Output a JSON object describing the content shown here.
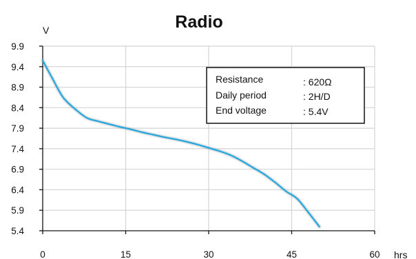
{
  "chart_data": {
    "type": "line",
    "title": "Radio",
    "ylabel": "V",
    "xlabel": "hrs",
    "xlim": [
      0,
      60
    ],
    "ylim": [
      5.4,
      9.9
    ],
    "x_ticks": [
      0,
      15,
      30,
      45,
      60
    ],
    "y_ticks": [
      5.4,
      5.9,
      6.4,
      6.9,
      7.4,
      7.9,
      8.4,
      8.9,
      9.4,
      9.9
    ],
    "grid": true,
    "series": [
      {
        "color": "#2aa7dd",
        "x": [
          0,
          1,
          2,
          3,
          4,
          6,
          8,
          10,
          12,
          14,
          16,
          18,
          20,
          22,
          24,
          26,
          28,
          30,
          32,
          34,
          36,
          38,
          40,
          42,
          44,
          46,
          48,
          50
        ],
        "y": [
          9.55,
          9.3,
          9.05,
          8.8,
          8.6,
          8.35,
          8.15,
          8.07,
          8.0,
          7.93,
          7.87,
          7.8,
          7.74,
          7.68,
          7.63,
          7.57,
          7.5,
          7.42,
          7.34,
          7.24,
          7.1,
          6.94,
          6.78,
          6.58,
          6.36,
          6.18,
          5.85,
          5.5
        ]
      }
    ],
    "legend": {
      "placement": "top-right",
      "rows": [
        {
          "label": "Resistance",
          "value": ": 620Ω"
        },
        {
          "label": "Daily period",
          "value": ": 2H/D"
        },
        {
          "label": "End voltage",
          "value": ": 5.4V"
        }
      ]
    }
  }
}
